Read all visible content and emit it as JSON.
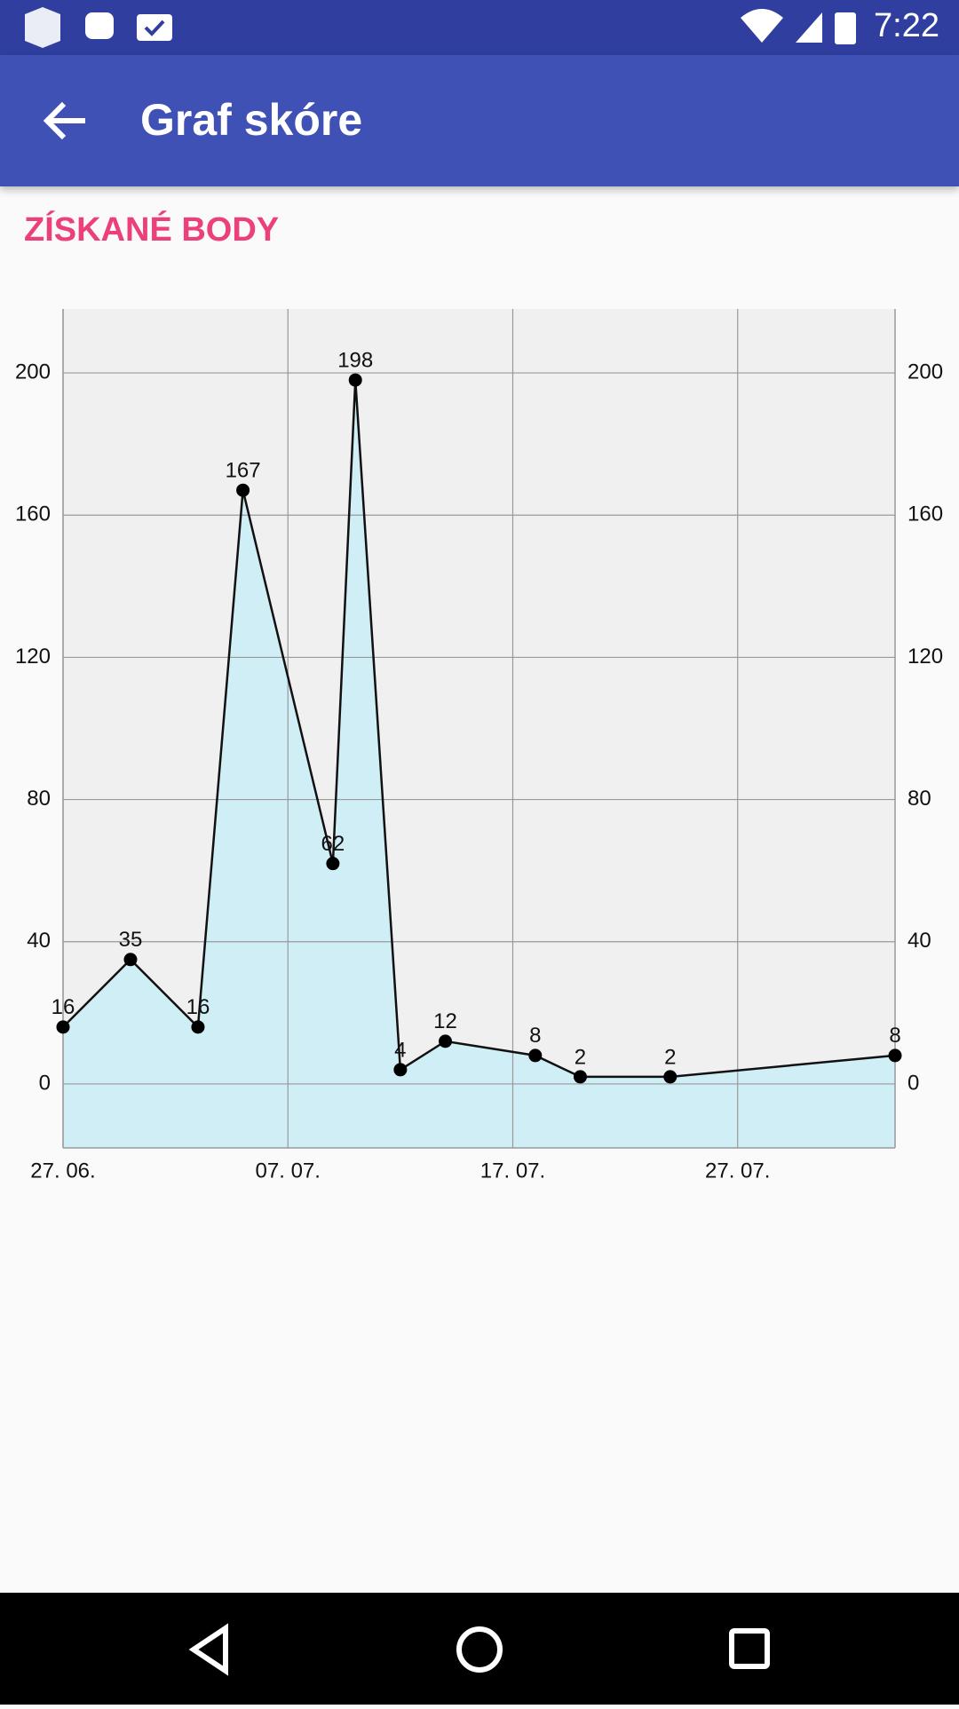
{
  "status_bar": {
    "time": "7:22"
  },
  "app_bar": {
    "title": "Graf skóre"
  },
  "section": {
    "title": "ZÍSKANÉ BODY"
  },
  "chart_data": {
    "type": "area",
    "x": [
      "27. 06.",
      "30. 06.",
      "03. 07.",
      "05. 07.",
      "09. 07.",
      "10. 07.",
      "12. 07.",
      "14. 07.",
      "18. 07.",
      "20. 07.",
      "24. 07.",
      "03. 08."
    ],
    "values": [
      16,
      35,
      16,
      167,
      62,
      198,
      4,
      12,
      8,
      2,
      2,
      8
    ],
    "xlim": [
      "27. 06.",
      "03. 08."
    ],
    "xticks": [
      "27. 06.",
      "07. 07.",
      "17. 07.",
      "27. 07."
    ],
    "ylim": [
      -18,
      218
    ],
    "yticks": [
      0,
      40,
      80,
      120,
      160,
      200
    ],
    "grid": true,
    "color": "#111111",
    "fill_color": "#d0eef6",
    "background": "#f0f0f0"
  }
}
